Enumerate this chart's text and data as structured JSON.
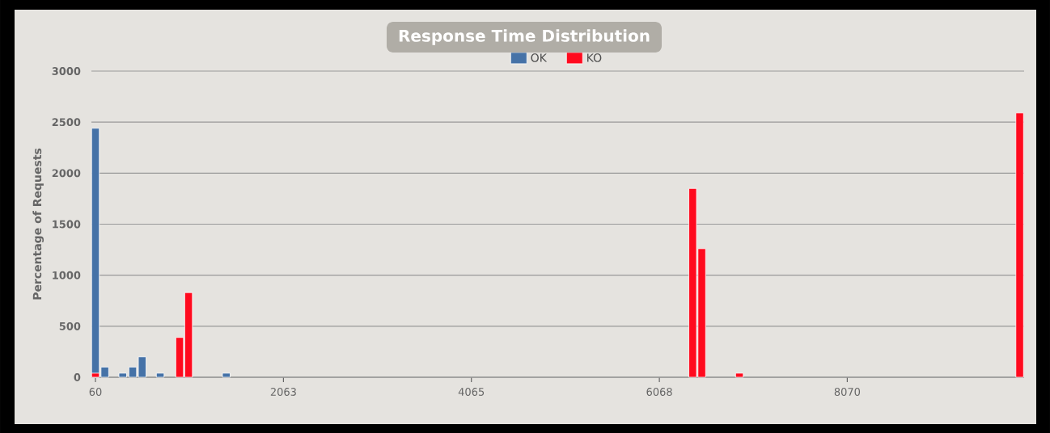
{
  "chart_data": {
    "type": "bar",
    "title": "Response Time Distribution",
    "ylabel": "Percentage of Requests",
    "series": [
      {
        "name": "OK",
        "color": "#4572a7",
        "x": [
          60,
          160,
          351,
          457,
          558,
          750,
          1454
        ],
        "values": [
          2440,
          100,
          40,
          100,
          200,
          40,
          40
        ]
      },
      {
        "name": "KO",
        "color": "#ff0a1e",
        "x": [
          60,
          957,
          1052,
          6423,
          6520,
          6921,
          9907
        ],
        "values": [
          40,
          390,
          830,
          1850,
          1260,
          40,
          2590
        ]
      }
    ],
    "xlim": [
      17,
      9954
    ],
    "xticks": [
      60,
      2063,
      4065,
      6068,
      8070
    ],
    "ylim": [
      0,
      3000
    ],
    "yticks": [
      0,
      500,
      1000,
      1500,
      2000,
      2500,
      3000
    ],
    "grid": "y",
    "legend": "top"
  }
}
